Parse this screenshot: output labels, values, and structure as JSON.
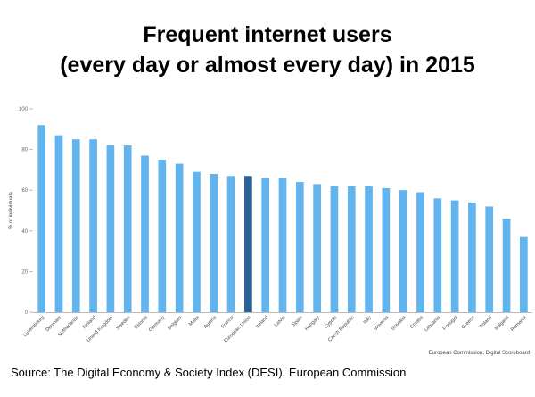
{
  "title_line1": "Frequent internet users",
  "title_line2": "(every day or almost every day) in 2015",
  "source": "Source: The Digital Economy & Society Index (DESI), European Commission",
  "credit": "European Commission, Digital Scoreboard",
  "colors": {
    "bar": "#62b4ef",
    "highlight": "#2b6196",
    "axis": "#bbbbbb",
    "tick_text": "#666666"
  },
  "chart_data": {
    "type": "bar",
    "ylabel": "% of individuals",
    "ylim": [
      0,
      100
    ],
    "yticks": [
      0,
      20,
      40,
      60,
      80,
      100
    ],
    "highlight": "European Union",
    "categories": [
      "Luxembourg",
      "Denmark",
      "Netherlands",
      "Finland",
      "United Kingdom",
      "Sweden",
      "Estonia",
      "Germany",
      "Belgium",
      "Malta",
      "Austria",
      "France",
      "European Union",
      "Ireland",
      "Latvia",
      "Spain",
      "Hungary",
      "Cyprus",
      "Czech Republic",
      "Italy",
      "Slovenia",
      "Slovakia",
      "Croatia",
      "Lithuania",
      "Portugal",
      "Greece",
      "Poland",
      "Bulgaria",
      "Romania"
    ],
    "values": [
      92,
      87,
      85,
      85,
      82,
      82,
      77,
      75,
      73,
      69,
      68,
      67,
      67,
      66,
      66,
      64,
      63,
      62,
      62,
      62,
      61,
      60,
      59,
      56,
      55,
      54,
      52,
      46,
      37
    ]
  }
}
